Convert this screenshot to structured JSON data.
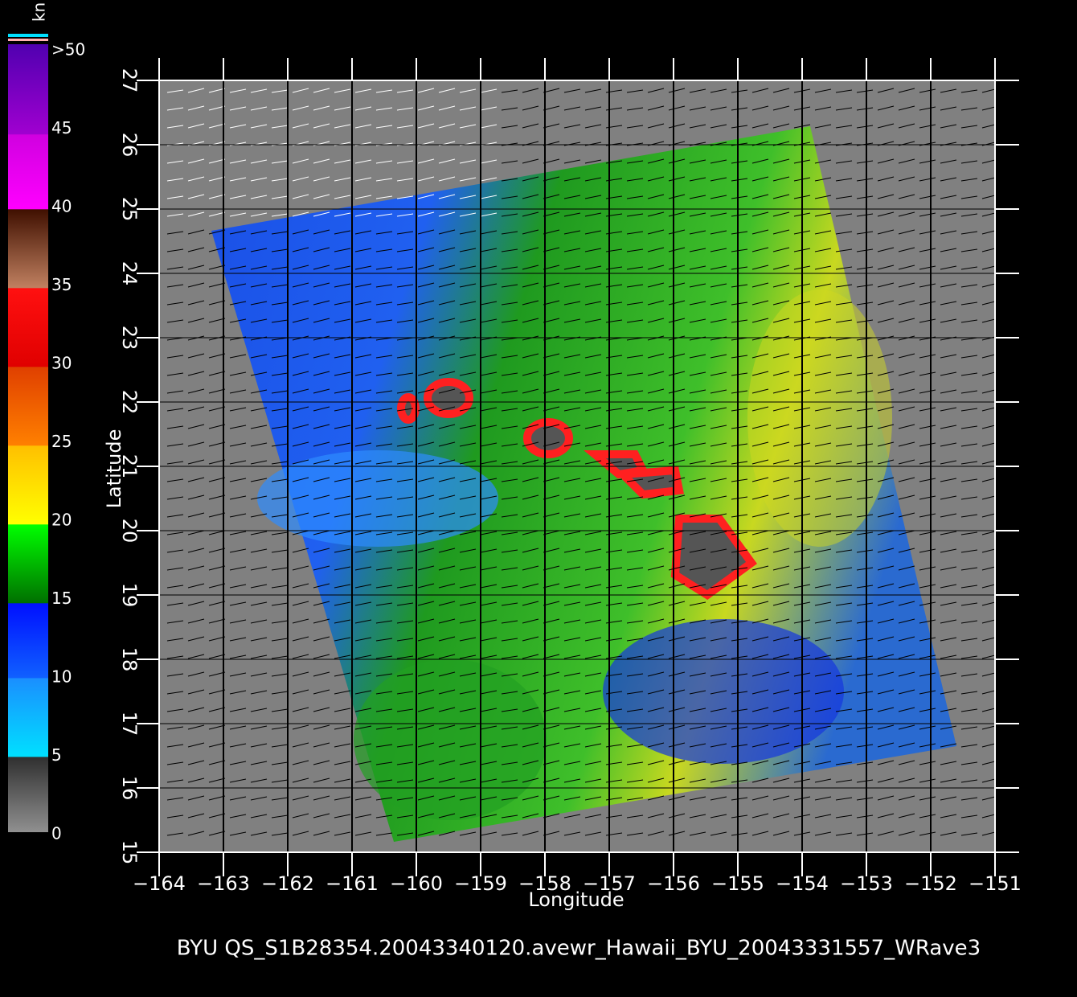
{
  "colorbar": {
    "unit": "kn",
    "ticks": [
      0,
      5,
      10,
      15,
      20,
      25,
      30,
      35,
      40,
      45,
      {
        "value": 50,
        "label": ">50"
      }
    ]
  },
  "map": {
    "xlabel": "Longitude",
    "ylabel": "Latitude",
    "xlim": [
      -164,
      -151
    ],
    "ylim": [
      15,
      27
    ],
    "xticks": [
      {
        "value": -164,
        "label": "−164"
      },
      {
        "value": -163,
        "label": "−163"
      },
      {
        "value": -162,
        "label": "−162"
      },
      {
        "value": -161,
        "label": "−161"
      },
      {
        "value": -160,
        "label": "−160"
      },
      {
        "value": -159,
        "label": "−159"
      },
      {
        "value": -158,
        "label": "−158"
      },
      {
        "value": -157,
        "label": "−157"
      },
      {
        "value": -156,
        "label": "−156"
      },
      {
        "value": -155,
        "label": "−155"
      },
      {
        "value": -154,
        "label": "−154"
      },
      {
        "value": -153,
        "label": "−153"
      },
      {
        "value": -152,
        "label": "−152"
      },
      {
        "value": -151,
        "label": "−151"
      }
    ],
    "yticks": [
      15,
      16,
      17,
      18,
      19,
      20,
      21,
      22,
      23,
      24,
      25,
      26,
      27
    ]
  },
  "caption": "BYU  QS_S1B28354.20043340120.avewr_Hawaii_BYU_20043331557_WRave3"
}
